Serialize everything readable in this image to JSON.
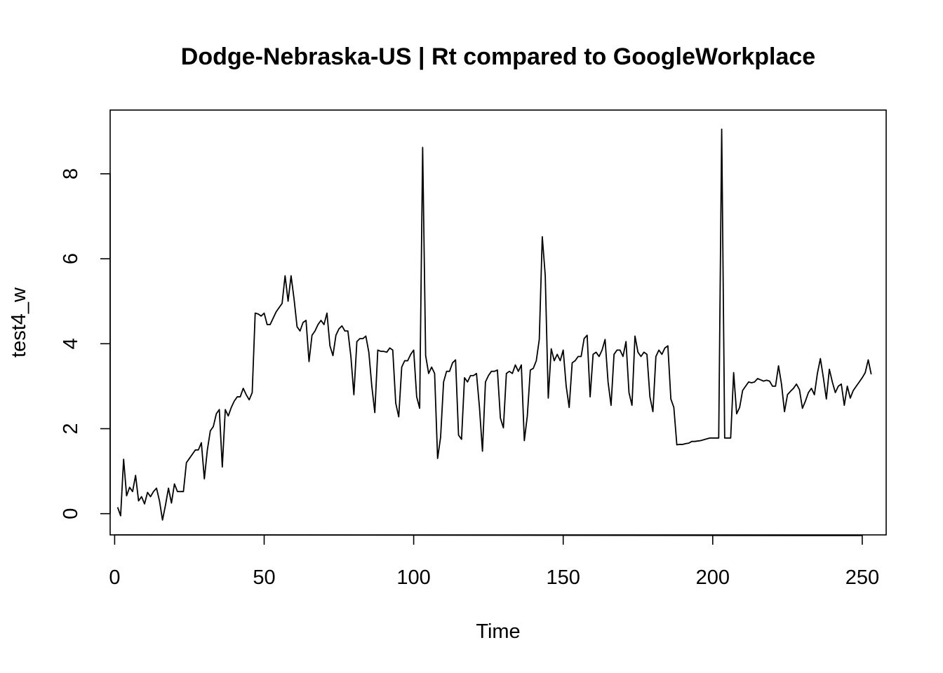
{
  "chart_data": {
    "type": "line",
    "title": "Dodge-Nebraska-US | Rt compared to GoogleWorkplace",
    "xlabel": "Time",
    "ylabel": "test4_w",
    "xlim": [
      -1.5,
      258
    ],
    "ylim": [
      -0.5,
      9.5
    ],
    "x_ticks": [
      0,
      50,
      100,
      150,
      200,
      250
    ],
    "y_ticks": [
      0,
      2,
      4,
      6,
      8
    ],
    "grid": false,
    "legend": "none",
    "line_color": "#000000",
    "x_start": 1,
    "series": [
      {
        "values": [
          0.15,
          -0.05,
          1.28,
          0.42,
          0.62,
          0.52,
          0.9,
          0.3,
          0.4,
          0.23,
          0.5,
          0.4,
          0.52,
          0.6,
          0.3,
          -0.15,
          0.2,
          0.6,
          0.25,
          0.7,
          0.52,
          0.52,
          0.52,
          1.2,
          1.3,
          1.4,
          1.5,
          1.5,
          1.67,
          0.82,
          1.5,
          1.95,
          2.05,
          2.35,
          2.45,
          1.1,
          2.45,
          2.3,
          2.5,
          2.65,
          2.75,
          2.75,
          2.95,
          2.8,
          2.68,
          2.85,
          4.72,
          4.7,
          4.65,
          4.72,
          4.45,
          4.45,
          4.6,
          4.75,
          4.85,
          4.95,
          5.6,
          5.0,
          5.6,
          5.05,
          4.4,
          4.3,
          4.5,
          4.55,
          3.58,
          4.2,
          4.3,
          4.45,
          4.55,
          4.45,
          4.72,
          3.95,
          3.72,
          4.2,
          4.35,
          4.42,
          4.3,
          4.3,
          3.7,
          2.8,
          4.05,
          4.12,
          4.12,
          4.18,
          3.8,
          3.0,
          2.38,
          3.85,
          3.82,
          3.82,
          3.8,
          3.9,
          3.85,
          2.6,
          2.28,
          3.45,
          3.6,
          3.6,
          3.75,
          3.85,
          2.75,
          2.48,
          8.62,
          3.72,
          3.3,
          3.45,
          3.3,
          1.3,
          1.8,
          3.1,
          3.35,
          3.35,
          3.55,
          3.62,
          1.85,
          1.75,
          3.2,
          3.1,
          3.25,
          3.25,
          3.3,
          2.5,
          1.47,
          3.1,
          3.25,
          3.35,
          3.35,
          3.38,
          2.25,
          2.02,
          3.3,
          3.35,
          3.3,
          3.5,
          3.35,
          3.5,
          1.72,
          2.3,
          3.38,
          3.42,
          3.6,
          4.1,
          6.52,
          5.6,
          2.72,
          3.88,
          3.6,
          3.75,
          3.6,
          3.85,
          3.0,
          2.5,
          3.55,
          3.6,
          3.7,
          3.7,
          4.12,
          4.2,
          2.75,
          3.75,
          3.8,
          3.7,
          3.85,
          4.1,
          3.1,
          2.55,
          3.75,
          3.85,
          3.85,
          3.7,
          4.05,
          2.85,
          2.55,
          4.18,
          3.8,
          3.7,
          3.8,
          3.75,
          2.75,
          2.4,
          3.7,
          3.85,
          3.75,
          3.9,
          3.95,
          2.7,
          2.5,
          1.62,
          1.63,
          1.63,
          1.65,
          1.66,
          1.7,
          1.7,
          1.71,
          1.72,
          1.74,
          1.76,
          1.78,
          1.78,
          1.78,
          1.78,
          9.05,
          1.78,
          1.78,
          1.78,
          3.32,
          2.35,
          2.5,
          2.9,
          3.0,
          3.1,
          3.08,
          3.1,
          3.18,
          3.15,
          3.12,
          3.14,
          3.12,
          3.0,
          3.0,
          3.48,
          3.05,
          2.4,
          2.8,
          2.88,
          2.95,
          3.05,
          2.92,
          2.48,
          2.65,
          2.85,
          2.95,
          2.8,
          3.3,
          3.65,
          3.2,
          2.7,
          3.4,
          3.1,
          2.85,
          3.0,
          3.05,
          2.55,
          3.0,
          2.72,
          2.9,
          3.0,
          3.1,
          3.2,
          3.32,
          3.62,
          3.28
        ]
      }
    ]
  }
}
